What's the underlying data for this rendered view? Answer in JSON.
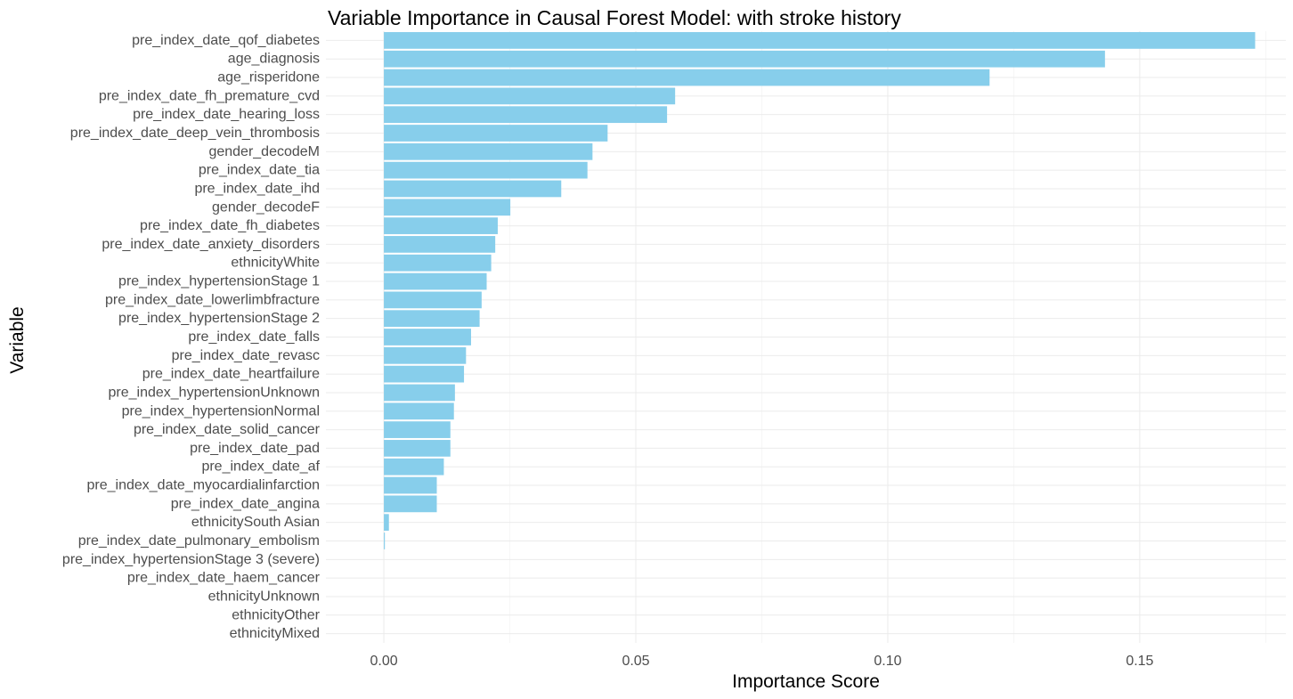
{
  "chart_data": {
    "type": "bar",
    "orientation": "horizontal",
    "title": "Variable Importance in Causal Forest Model: with stroke history",
    "xlabel": "Importance Score",
    "ylabel": "Variable",
    "xlim": [
      -0.0115,
      0.179
    ],
    "xticks": [
      0.0,
      0.05,
      0.1,
      0.15
    ],
    "xtick_labels": [
      "0.00",
      "0.05",
      "0.10",
      "0.15"
    ],
    "grid": true,
    "legend": "none",
    "bar_color": "#87CEEB",
    "categories": [
      "pre_index_date_qof_diabetes",
      "age_diagnosis",
      "age_risperidone",
      "pre_index_date_fh_premature_cvd",
      "pre_index_date_hearing_loss",
      "pre_index_date_deep_vein_thrombosis",
      "gender_decodeM",
      "pre_index_date_tia",
      "pre_index_date_ihd",
      "gender_decodeF",
      "pre_index_date_fh_diabetes",
      "pre_index_date_anxiety_disorders",
      "ethnicityWhite",
      "pre_index_hypertensionStage 1",
      "pre_index_date_lowerlimbfracture",
      "pre_index_hypertensionStage 2",
      "pre_index_date_falls",
      "pre_index_date_revasc",
      "pre_index_date_heartfailure",
      "pre_index_hypertensionUnknown",
      "pre_index_hypertensionNormal",
      "pre_index_date_solid_cancer",
      "pre_index_date_pad",
      "pre_index_date_af",
      "pre_index_date_myocardialinfarction",
      "pre_index_date_angina",
      "ethnicitySouth Asian",
      "pre_index_date_pulmonary_embolism",
      "pre_index_hypertensionStage 3 (severe)",
      "pre_index_date_haem_cancer",
      "ethnicityUnknown",
      "ethnicityOther",
      "ethnicityMixed"
    ],
    "values": [
      0.1729,
      0.1431,
      0.1202,
      0.0578,
      0.0562,
      0.0444,
      0.0414,
      0.0404,
      0.0352,
      0.0251,
      0.0226,
      0.0221,
      0.0213,
      0.0204,
      0.0194,
      0.019,
      0.0173,
      0.0163,
      0.0159,
      0.0141,
      0.0139,
      0.0132,
      0.0132,
      0.0119,
      0.0105,
      0.0105,
      0.001,
      0.0002,
      0,
      0,
      0,
      0,
      0
    ]
  }
}
